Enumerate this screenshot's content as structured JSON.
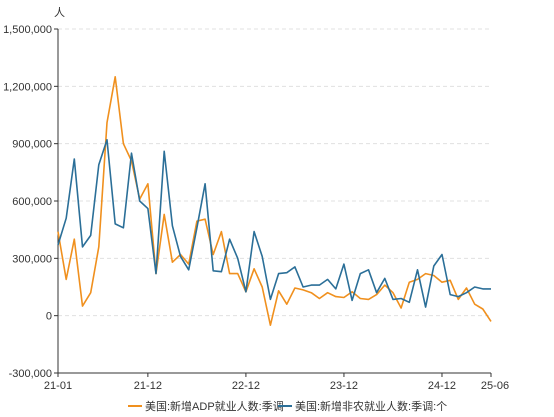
{
  "chart_data": {
    "type": "line",
    "unit": "人",
    "y_ticks": [
      -300000,
      0,
      300000,
      600000,
      900000,
      1200000,
      1500000
    ],
    "y_tick_labels": [
      "-300,000",
      "0",
      "300,000",
      "600,000",
      "900,000",
      "1,200,000",
      "1,500,000"
    ],
    "ylim": [
      -300000,
      1500000
    ],
    "x_tick_labels": [
      "21-01",
      "21-12",
      "22-12",
      "23-12",
      "24-12",
      "25-06"
    ],
    "x_tick_months": [
      "2021-01",
      "2021-12",
      "2022-12",
      "2023-12",
      "2024-12",
      "2025-06"
    ],
    "x_range": [
      "2021-01",
      "2025-06"
    ],
    "grid": "horizontal dashed",
    "legend_position": "bottom",
    "months": [
      "2021-01",
      "2021-02",
      "2021-03",
      "2021-04",
      "2021-05",
      "2021-06",
      "2021-07",
      "2021-08",
      "2021-09",
      "2021-10",
      "2021-11",
      "2021-12",
      "2022-01",
      "2022-02",
      "2022-03",
      "2022-04",
      "2022-05",
      "2022-06",
      "2022-07",
      "2022-08",
      "2022-09",
      "2022-10",
      "2022-11",
      "2022-12",
      "2023-01",
      "2023-02",
      "2023-03",
      "2023-04",
      "2023-05",
      "2023-06",
      "2023-07",
      "2023-08",
      "2023-09",
      "2023-10",
      "2023-11",
      "2023-12",
      "2024-01",
      "2024-02",
      "2024-03",
      "2024-04",
      "2024-05",
      "2024-06",
      "2024-07",
      "2024-08",
      "2024-09",
      "2024-10",
      "2024-11",
      "2024-12",
      "2025-01",
      "2025-02",
      "2025-03",
      "2025-04",
      "2025-05",
      "2025-06"
    ],
    "series": [
      {
        "name": "美国:新增ADP就业人数:季调",
        "color": "#f0901e",
        "values": [
          440000,
          190000,
          400000,
          50000,
          120000,
          360000,
          1010000,
          1250000,
          900000,
          810000,
          610000,
          690000,
          220000,
          530000,
          280000,
          320000,
          270000,
          495000,
          505000,
          320000,
          440000,
          220000,
          220000,
          125000,
          245000,
          150000,
          -50000,
          130000,
          60000,
          145000,
          135000,
          120000,
          90000,
          120000,
          100000,
          95000,
          125000,
          90000,
          85000,
          110000,
          160000,
          120000,
          40000,
          175000,
          190000,
          220000,
          210000,
          175000,
          185000,
          85000,
          145000,
          60000,
          35000,
          -30000
        ]
      },
      {
        "name": "美国:新增非农就业人数:季调:个",
        "color": "#2b6f98",
        "values": [
          370000,
          510000,
          820000,
          360000,
          420000,
          790000,
          920000,
          480000,
          460000,
          850000,
          600000,
          560000,
          220000,
          860000,
          470000,
          310000,
          240000,
          460000,
          690000,
          235000,
          230000,
          400000,
          300000,
          125000,
          440000,
          310000,
          85000,
          220000,
          225000,
          255000,
          150000,
          160000,
          160000,
          190000,
          140000,
          270000,
          80000,
          220000,
          240000,
          120000,
          195000,
          85000,
          90000,
          70000,
          240000,
          45000,
          260000,
          320000,
          110000,
          100000,
          120000,
          150000,
          140000,
          140000
        ]
      }
    ]
  }
}
